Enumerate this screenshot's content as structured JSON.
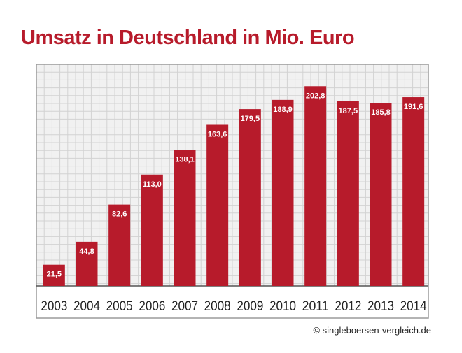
{
  "chart_data": {
    "type": "bar",
    "title": "Umsatz in Deutschland in Mio. Euro",
    "categories": [
      "2003",
      "2004",
      "2005",
      "2006",
      "2007",
      "2008",
      "2009",
      "2010",
      "2011",
      "2012",
      "2013",
      "2014"
    ],
    "values": [
      21.5,
      44.8,
      82.6,
      113.0,
      138.1,
      163.6,
      179.5,
      188.9,
      202.8,
      187.5,
      185.8,
      191.6
    ],
    "value_labels": [
      "21,5",
      "44,8",
      "82,6",
      "113,0",
      "138,1",
      "163,6",
      "179,5",
      "188,9",
      "202,8",
      "187,5",
      "185,8",
      "191,6"
    ],
    "ylim": [
      0,
      225
    ],
    "grid": true,
    "xlabel": "",
    "ylabel": ""
  },
  "colors": {
    "bar": "#b71b2b",
    "title": "#b71b2b",
    "grid_bg": "#f1f1f1",
    "grid_line": "#d2d2d2",
    "frame": "#9a9a9a"
  },
  "credit": "© singleboersen-vergleich.de"
}
